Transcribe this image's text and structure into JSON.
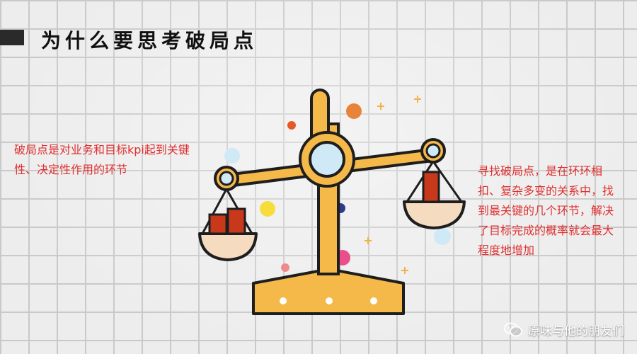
{
  "heading": {
    "title": "为什么要思考破局点"
  },
  "left_note": {
    "text": "破局点是对业务和目标kpi起到关键性、决定性作用的环节"
  },
  "right_note": {
    "text": "寻找破局点，是在环环相扣、复杂多变的关系中，找到最关键的几个环节，解决了目标完成的概率就会最大程度地增加"
  },
  "watermark": {
    "text": "原味与他的朋友们",
    "icon": "wechat-icon"
  },
  "colors": {
    "title_bar": "#2a2a2a",
    "callout_text": "#e03030",
    "scale_gold": "#f5b94a",
    "scale_outline": "#1e1e1e",
    "scale_blue": "#cfe9f7",
    "block_red": "#c8381b"
  }
}
